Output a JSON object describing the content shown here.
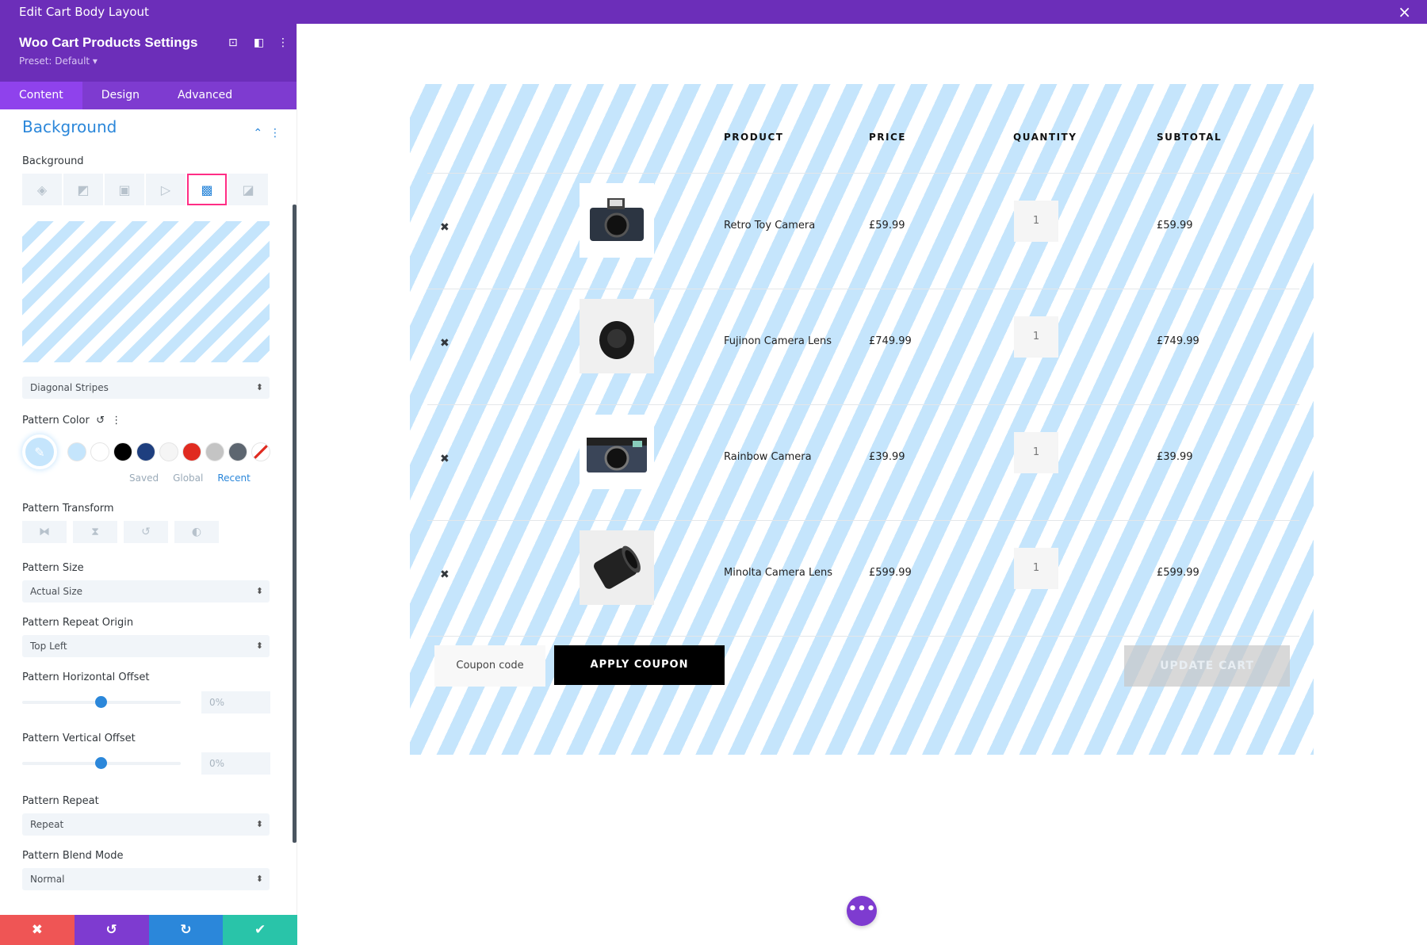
{
  "window": {
    "title": "Edit Cart Body Layout",
    "close_icon": "×"
  },
  "panel": {
    "title": "Woo Cart Products Settings",
    "preset": "Preset: Default ▾",
    "tabs": [
      {
        "label": "Content"
      },
      {
        "label": "Design"
      },
      {
        "label": "Advanced"
      }
    ],
    "section": "Background",
    "background_label": "Background",
    "pattern_style": "Diagonal Stripes",
    "pattern_color_label": "Pattern Color",
    "swatches": [
      "#c5e5fc",
      "#ffffff",
      "#000000",
      "#1e3f7f",
      "#f5f5f5",
      "#e02b20",
      "#c4c4c4",
      "#5d6670"
    ],
    "color_tabs": [
      "Saved",
      "Global",
      "Recent"
    ],
    "pattern_transform_label": "Pattern Transform",
    "pattern_size_label": "Pattern Size",
    "pattern_size": "Actual Size",
    "repeat_origin_label": "Pattern Repeat Origin",
    "repeat_origin": "Top Left",
    "h_offset_label": "Pattern Horizontal Offset",
    "h_offset": "0%",
    "v_offset_label": "Pattern Vertical Offset",
    "v_offset": "0%",
    "repeat_label": "Pattern Repeat",
    "repeat": "Repeat",
    "blend_label": "Pattern Blend Mode",
    "blend": "Normal",
    "footer_colors": [
      "#ef5555",
      "#7e3bd0",
      "#2b87da",
      "#29c4a9"
    ]
  },
  "cart": {
    "headers": [
      "PRODUCT",
      "PRICE",
      "QUANTITY",
      "SUBTOTAL"
    ],
    "rows": [
      {
        "name": "Retro Toy Camera",
        "price": "£59.99",
        "qty": "1",
        "subtotal": "£59.99"
      },
      {
        "name": "Fujinon Camera Lens",
        "price": "£749.99",
        "qty": "1",
        "subtotal": "£749.99"
      },
      {
        "name": "Rainbow Camera",
        "price": "£39.99",
        "qty": "1",
        "subtotal": "£39.99"
      },
      {
        "name": "Minolta Camera Lens",
        "price": "£599.99",
        "qty": "1",
        "subtotal": "£599.99"
      }
    ],
    "coupon_placeholder": "Coupon code",
    "apply_label": "APPLY COUPON",
    "update_label": "UPDATE CART"
  }
}
